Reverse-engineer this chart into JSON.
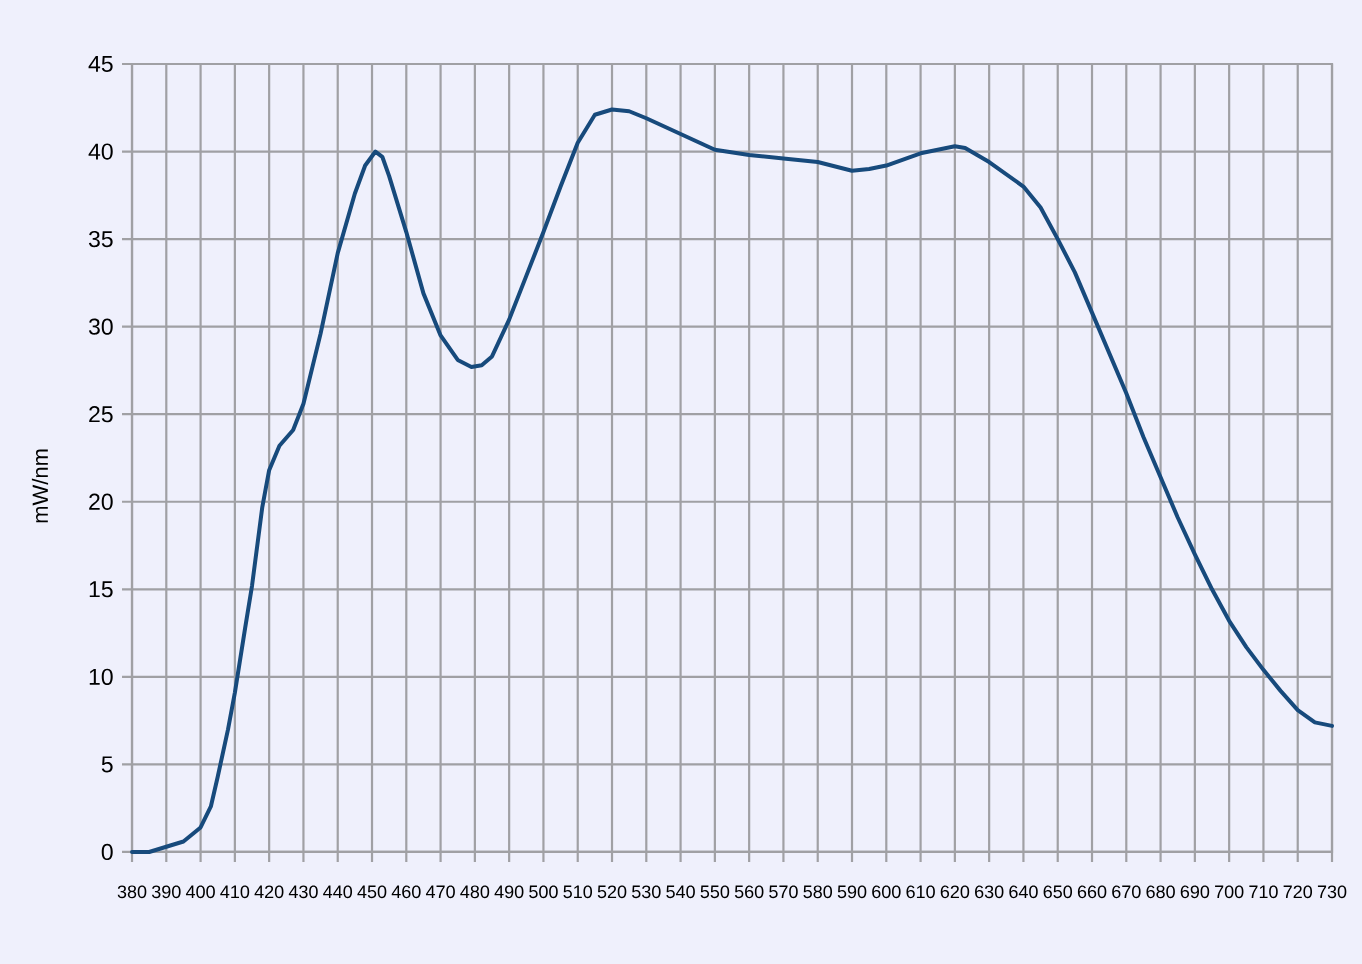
{
  "chart_data": {
    "type": "line",
    "ylabel": "mW/nm",
    "x": [
      380,
      385,
      390,
      395,
      400,
      403,
      405,
      408,
      410,
      413,
      415,
      418,
      420,
      423,
      427,
      430,
      435,
      440,
      445,
      448,
      451,
      453,
      455,
      460,
      465,
      470,
      475,
      479,
      482,
      485,
      490,
      495,
      500,
      505,
      510,
      515,
      520,
      525,
      530,
      540,
      550,
      560,
      570,
      580,
      590,
      595,
      600,
      610,
      620,
      623,
      630,
      640,
      645,
      650,
      655,
      660,
      665,
      670,
      675,
      680,
      685,
      690,
      695,
      700,
      705,
      710,
      715,
      720,
      725,
      730
    ],
    "values": [
      0,
      0,
      0.3,
      0.6,
      1.4,
      2.6,
      4.3,
      7.0,
      9.1,
      12.8,
      15.2,
      19.7,
      21.8,
      23.2,
      24.1,
      25.6,
      29.6,
      34.2,
      37.6,
      39.2,
      40.0,
      39.7,
      38.6,
      35.4,
      31.9,
      29.5,
      28.1,
      27.7,
      27.8,
      28.3,
      30.4,
      32.9,
      35.4,
      38.0,
      40.5,
      42.1,
      42.4,
      42.3,
      41.9,
      41.0,
      40.1,
      39.8,
      39.6,
      39.4,
      38.9,
      39.0,
      39.2,
      39.9,
      40.3,
      40.2,
      39.4,
      38.0,
      36.8,
      35.0,
      33.1,
      30.8,
      28.5,
      26.2,
      23.7,
      21.4,
      19.1,
      17.0,
      15.0,
      13.2,
      11.7,
      10.4,
      9.2,
      8.1,
      7.4,
      7.2
    ],
    "color": "#174a7c",
    "xlim": [
      380,
      730
    ],
    "ylim": [
      0,
      45
    ],
    "xticks": [
      380,
      390,
      400,
      410,
      420,
      430,
      440,
      450,
      460,
      470,
      480,
      490,
      500,
      510,
      520,
      530,
      540,
      550,
      560,
      570,
      580,
      590,
      600,
      610,
      620,
      630,
      640,
      650,
      660,
      670,
      680,
      690,
      700,
      710,
      720,
      730
    ],
    "yticks": [
      0,
      5,
      10,
      15,
      20,
      25,
      30,
      35,
      40,
      45
    ],
    "grid": true,
    "marker": "none",
    "line_style": "solid"
  }
}
